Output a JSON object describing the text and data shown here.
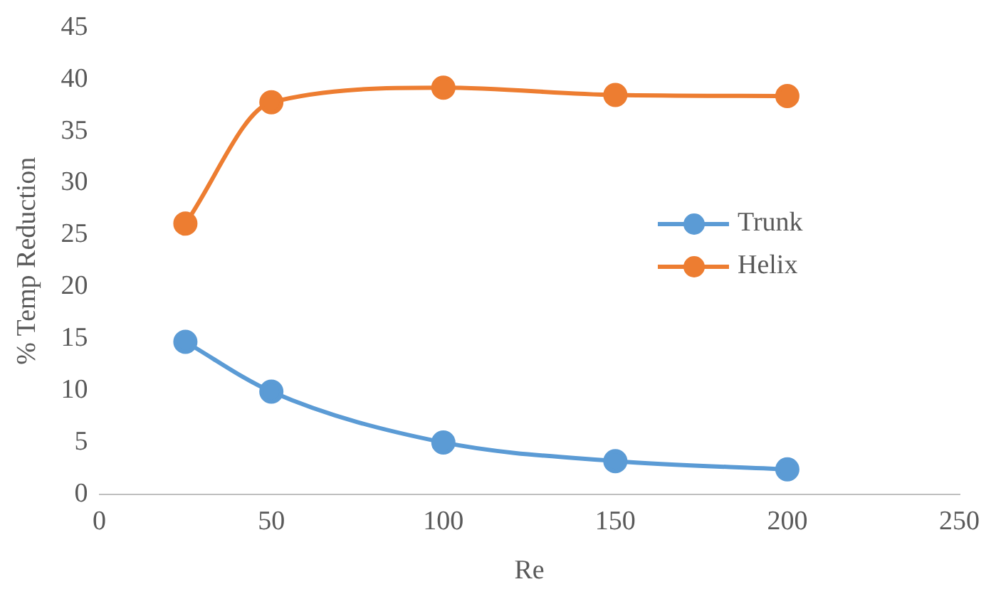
{
  "chart_data": {
    "type": "line",
    "xlabel": "Re",
    "ylabel": "% Temp Reduction",
    "x": [
      25,
      50,
      100,
      150,
      200
    ],
    "series": [
      {
        "name": "Trunk",
        "color": "#5b9bd5",
        "values": [
          14.7,
          9.9,
          5.0,
          3.2,
          2.4
        ]
      },
      {
        "name": "Helix",
        "color": "#ed7d31",
        "values": [
          26.1,
          37.8,
          39.2,
          38.5,
          38.4
        ]
      }
    ],
    "xlim": [
      0,
      250
    ],
    "xticks": [
      0,
      50,
      100,
      150,
      200,
      250
    ],
    "ylim": [
      0,
      45
    ],
    "yticks": [
      0,
      5,
      10,
      15,
      20,
      25,
      30,
      35,
      40,
      45
    ],
    "grid": false,
    "legend": "right",
    "marker": "circle",
    "line_style": "solid"
  }
}
